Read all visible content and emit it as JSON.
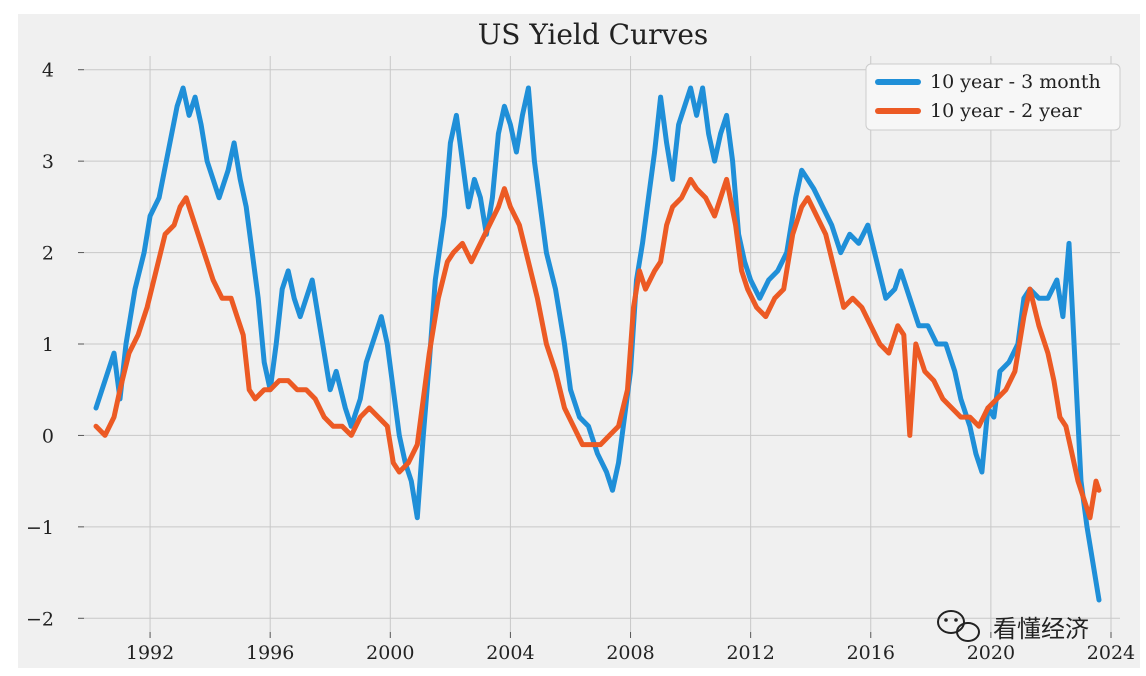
{
  "chart_data": {
    "type": "line",
    "title": "US Yield Curves",
    "xlabel": "",
    "ylabel": "",
    "xlim": [
      1989.8,
      2024.3
    ],
    "ylim": [
      -2.15,
      4.15
    ],
    "xticks": [
      1992,
      1996,
      2000,
      2004,
      2008,
      2012,
      2016,
      2020,
      2024
    ],
    "xtick_labels": [
      "1992",
      "1996",
      "2000",
      "2004",
      "2008",
      "2012",
      "2016",
      "2020",
      "2024"
    ],
    "yticks": [
      -2,
      -1,
      0,
      1,
      2,
      3,
      4
    ],
    "ytick_labels": [
      "−2",
      "−1",
      "0",
      "1",
      "2",
      "3",
      "4"
    ],
    "grid": true,
    "legend_position": "top-right",
    "series": [
      {
        "name": "10 year - 3 month",
        "color": "#1f8fd8",
        "points": [
          [
            1990.2,
            0.3
          ],
          [
            1990.5,
            0.6
          ],
          [
            1990.8,
            0.9
          ],
          [
            1991.0,
            0.4
          ],
          [
            1991.2,
            1.0
          ],
          [
            1991.5,
            1.6
          ],
          [
            1991.8,
            2.0
          ],
          [
            1992.0,
            2.4
          ],
          [
            1992.3,
            2.6
          ],
          [
            1992.6,
            3.1
          ],
          [
            1992.9,
            3.6
          ],
          [
            1993.1,
            3.8
          ],
          [
            1993.3,
            3.5
          ],
          [
            1993.5,
            3.7
          ],
          [
            1993.7,
            3.4
          ],
          [
            1993.9,
            3.0
          ],
          [
            1994.1,
            2.8
          ],
          [
            1994.3,
            2.6
          ],
          [
            1994.6,
            2.9
          ],
          [
            1994.8,
            3.2
          ],
          [
            1995.0,
            2.8
          ],
          [
            1995.2,
            2.5
          ],
          [
            1995.4,
            2.0
          ],
          [
            1995.6,
            1.5
          ],
          [
            1995.8,
            0.8
          ],
          [
            1996.0,
            0.5
          ],
          [
            1996.2,
            1.0
          ],
          [
            1996.4,
            1.6
          ],
          [
            1996.6,
            1.8
          ],
          [
            1996.8,
            1.5
          ],
          [
            1997.0,
            1.3
          ],
          [
            1997.2,
            1.5
          ],
          [
            1997.4,
            1.7
          ],
          [
            1997.6,
            1.3
          ],
          [
            1997.8,
            0.9
          ],
          [
            1998.0,
            0.5
          ],
          [
            1998.2,
            0.7
          ],
          [
            1998.5,
            0.3
          ],
          [
            1998.7,
            0.1
          ],
          [
            1999.0,
            0.4
          ],
          [
            1999.2,
            0.8
          ],
          [
            1999.5,
            1.1
          ],
          [
            1999.7,
            1.3
          ],
          [
            1999.9,
            1.0
          ],
          [
            2000.1,
            0.5
          ],
          [
            2000.3,
            0.0
          ],
          [
            2000.5,
            -0.3
          ],
          [
            2000.7,
            -0.5
          ],
          [
            2000.9,
            -0.9
          ],
          [
            2001.1,
            0.0
          ],
          [
            2001.3,
            0.8
          ],
          [
            2001.5,
            1.7
          ],
          [
            2001.8,
            2.4
          ],
          [
            2002.0,
            3.2
          ],
          [
            2002.2,
            3.5
          ],
          [
            2002.4,
            3.0
          ],
          [
            2002.6,
            2.5
          ],
          [
            2002.8,
            2.8
          ],
          [
            2003.0,
            2.6
          ],
          [
            2003.2,
            2.2
          ],
          [
            2003.4,
            2.6
          ],
          [
            2003.6,
            3.3
          ],
          [
            2003.8,
            3.6
          ],
          [
            2004.0,
            3.4
          ],
          [
            2004.2,
            3.1
          ],
          [
            2004.4,
            3.5
          ],
          [
            2004.6,
            3.8
          ],
          [
            2004.8,
            3.0
          ],
          [
            2005.0,
            2.5
          ],
          [
            2005.2,
            2.0
          ],
          [
            2005.5,
            1.6
          ],
          [
            2005.8,
            1.0
          ],
          [
            2006.0,
            0.5
          ],
          [
            2006.3,
            0.2
          ],
          [
            2006.6,
            0.1
          ],
          [
            2006.9,
            -0.2
          ],
          [
            2007.2,
            -0.4
          ],
          [
            2007.4,
            -0.6
          ],
          [
            2007.6,
            -0.3
          ],
          [
            2007.8,
            0.2
          ],
          [
            2008.0,
            0.7
          ],
          [
            2008.2,
            1.7
          ],
          [
            2008.4,
            2.1
          ],
          [
            2008.6,
            2.6
          ],
          [
            2008.8,
            3.1
          ],
          [
            2009.0,
            3.7
          ],
          [
            2009.2,
            3.2
          ],
          [
            2009.4,
            2.8
          ],
          [
            2009.6,
            3.4
          ],
          [
            2009.8,
            3.6
          ],
          [
            2010.0,
            3.8
          ],
          [
            2010.2,
            3.5
          ],
          [
            2010.4,
            3.8
          ],
          [
            2010.6,
            3.3
          ],
          [
            2010.8,
            3.0
          ],
          [
            2011.0,
            3.3
          ],
          [
            2011.2,
            3.5
          ],
          [
            2011.4,
            3.0
          ],
          [
            2011.6,
            2.2
          ],
          [
            2011.8,
            1.9
          ],
          [
            2012.0,
            1.7
          ],
          [
            2012.3,
            1.5
          ],
          [
            2012.6,
            1.7
          ],
          [
            2012.9,
            1.8
          ],
          [
            2013.2,
            2.0
          ],
          [
            2013.5,
            2.6
          ],
          [
            2013.7,
            2.9
          ],
          [
            2013.9,
            2.8
          ],
          [
            2014.1,
            2.7
          ],
          [
            2014.4,
            2.5
          ],
          [
            2014.7,
            2.3
          ],
          [
            2015.0,
            2.0
          ],
          [
            2015.3,
            2.2
          ],
          [
            2015.6,
            2.1
          ],
          [
            2015.9,
            2.3
          ],
          [
            2016.2,
            1.9
          ],
          [
            2016.5,
            1.5
          ],
          [
            2016.8,
            1.6
          ],
          [
            2017.0,
            1.8
          ],
          [
            2017.3,
            1.5
          ],
          [
            2017.6,
            1.2
          ],
          [
            2017.9,
            1.2
          ],
          [
            2018.2,
            1.0
          ],
          [
            2018.5,
            1.0
          ],
          [
            2018.8,
            0.7
          ],
          [
            2019.0,
            0.4
          ],
          [
            2019.3,
            0.1
          ],
          [
            2019.5,
            -0.2
          ],
          [
            2019.7,
            -0.4
          ],
          [
            2019.9,
            0.3
          ],
          [
            2020.1,
            0.2
          ],
          [
            2020.3,
            0.7
          ],
          [
            2020.6,
            0.8
          ],
          [
            2020.9,
            1.0
          ],
          [
            2021.1,
            1.5
          ],
          [
            2021.3,
            1.6
          ],
          [
            2021.6,
            1.5
          ],
          [
            2021.9,
            1.5
          ],
          [
            2022.2,
            1.7
          ],
          [
            2022.4,
            1.3
          ],
          [
            2022.6,
            2.1
          ],
          [
            2022.8,
            0.8
          ],
          [
            2023.0,
            -0.5
          ],
          [
            2023.2,
            -1.0
          ],
          [
            2023.4,
            -1.4
          ],
          [
            2023.6,
            -1.8
          ]
        ]
      },
      {
        "name": "10 year - 2 year",
        "color": "#ec5a24",
        "points": [
          [
            1990.2,
            0.1
          ],
          [
            1990.5,
            0.0
          ],
          [
            1990.8,
            0.2
          ],
          [
            1991.0,
            0.5
          ],
          [
            1991.3,
            0.9
          ],
          [
            1991.6,
            1.1
          ],
          [
            1991.9,
            1.4
          ],
          [
            1992.2,
            1.8
          ],
          [
            1992.5,
            2.2
          ],
          [
            1992.8,
            2.3
          ],
          [
            1993.0,
            2.5
          ],
          [
            1993.2,
            2.6
          ],
          [
            1993.5,
            2.3
          ],
          [
            1993.8,
            2.0
          ],
          [
            1994.1,
            1.7
          ],
          [
            1994.4,
            1.5
          ],
          [
            1994.7,
            1.5
          ],
          [
            1994.9,
            1.3
          ],
          [
            1995.1,
            1.1
          ],
          [
            1995.3,
            0.5
          ],
          [
            1995.5,
            0.4
          ],
          [
            1995.8,
            0.5
          ],
          [
            1996.0,
            0.5
          ],
          [
            1996.3,
            0.6
          ],
          [
            1996.6,
            0.6
          ],
          [
            1996.9,
            0.5
          ],
          [
            1997.2,
            0.5
          ],
          [
            1997.5,
            0.4
          ],
          [
            1997.8,
            0.2
          ],
          [
            1998.1,
            0.1
          ],
          [
            1998.4,
            0.1
          ],
          [
            1998.7,
            0.0
          ],
          [
            1999.0,
            0.2
          ],
          [
            1999.3,
            0.3
          ],
          [
            1999.6,
            0.2
          ],
          [
            1999.9,
            0.1
          ],
          [
            2000.1,
            -0.3
          ],
          [
            2000.3,
            -0.4
          ],
          [
            2000.6,
            -0.3
          ],
          [
            2000.9,
            -0.1
          ],
          [
            2001.1,
            0.4
          ],
          [
            2001.3,
            0.9
          ],
          [
            2001.6,
            1.5
          ],
          [
            2001.9,
            1.9
          ],
          [
            2002.1,
            2.0
          ],
          [
            2002.4,
            2.1
          ],
          [
            2002.7,
            1.9
          ],
          [
            2003.0,
            2.1
          ],
          [
            2003.3,
            2.3
          ],
          [
            2003.6,
            2.5
          ],
          [
            2003.8,
            2.7
          ],
          [
            2004.0,
            2.5
          ],
          [
            2004.3,
            2.3
          ],
          [
            2004.6,
            1.9
          ],
          [
            2004.9,
            1.5
          ],
          [
            2005.2,
            1.0
          ],
          [
            2005.5,
            0.7
          ],
          [
            2005.8,
            0.3
          ],
          [
            2006.1,
            0.1
          ],
          [
            2006.4,
            -0.1
          ],
          [
            2006.7,
            -0.1
          ],
          [
            2007.0,
            -0.1
          ],
          [
            2007.3,
            0.0
          ],
          [
            2007.6,
            0.1
          ],
          [
            2007.9,
            0.5
          ],
          [
            2008.1,
            1.4
          ],
          [
            2008.3,
            1.8
          ],
          [
            2008.5,
            1.6
          ],
          [
            2008.8,
            1.8
          ],
          [
            2009.0,
            1.9
          ],
          [
            2009.2,
            2.3
          ],
          [
            2009.4,
            2.5
          ],
          [
            2009.7,
            2.6
          ],
          [
            2010.0,
            2.8
          ],
          [
            2010.2,
            2.7
          ],
          [
            2010.5,
            2.6
          ],
          [
            2010.8,
            2.4
          ],
          [
            2011.0,
            2.6
          ],
          [
            2011.2,
            2.8
          ],
          [
            2011.5,
            2.3
          ],
          [
            2011.7,
            1.8
          ],
          [
            2011.9,
            1.6
          ],
          [
            2012.2,
            1.4
          ],
          [
            2012.5,
            1.3
          ],
          [
            2012.8,
            1.5
          ],
          [
            2013.1,
            1.6
          ],
          [
            2013.4,
            2.2
          ],
          [
            2013.7,
            2.5
          ],
          [
            2013.9,
            2.6
          ],
          [
            2014.2,
            2.4
          ],
          [
            2014.5,
            2.2
          ],
          [
            2014.8,
            1.8
          ],
          [
            2015.1,
            1.4
          ],
          [
            2015.4,
            1.5
          ],
          [
            2015.7,
            1.4
          ],
          [
            2016.0,
            1.2
          ],
          [
            2016.3,
            1.0
          ],
          [
            2016.6,
            0.9
          ],
          [
            2016.9,
            1.2
          ],
          [
            2017.1,
            1.1
          ],
          [
            2017.3,
            0.0
          ],
          [
            2017.5,
            1.0
          ],
          [
            2017.8,
            0.7
          ],
          [
            2018.1,
            0.6
          ],
          [
            2018.4,
            0.4
          ],
          [
            2018.7,
            0.3
          ],
          [
            2019.0,
            0.2
          ],
          [
            2019.3,
            0.2
          ],
          [
            2019.6,
            0.1
          ],
          [
            2019.9,
            0.3
          ],
          [
            2020.2,
            0.4
          ],
          [
            2020.5,
            0.5
          ],
          [
            2020.8,
            0.7
          ],
          [
            2021.1,
            1.3
          ],
          [
            2021.3,
            1.6
          ],
          [
            2021.6,
            1.2
          ],
          [
            2021.9,
            0.9
          ],
          [
            2022.1,
            0.6
          ],
          [
            2022.3,
            0.2
          ],
          [
            2022.5,
            0.1
          ],
          [
            2022.7,
            -0.2
          ],
          [
            2022.9,
            -0.5
          ],
          [
            2023.1,
            -0.7
          ],
          [
            2023.3,
            -0.9
          ],
          [
            2023.5,
            -0.5
          ],
          [
            2023.6,
            -0.6
          ]
        ]
      }
    ]
  },
  "watermark": {
    "text": "看懂经济",
    "icon": "wechat-icon"
  }
}
